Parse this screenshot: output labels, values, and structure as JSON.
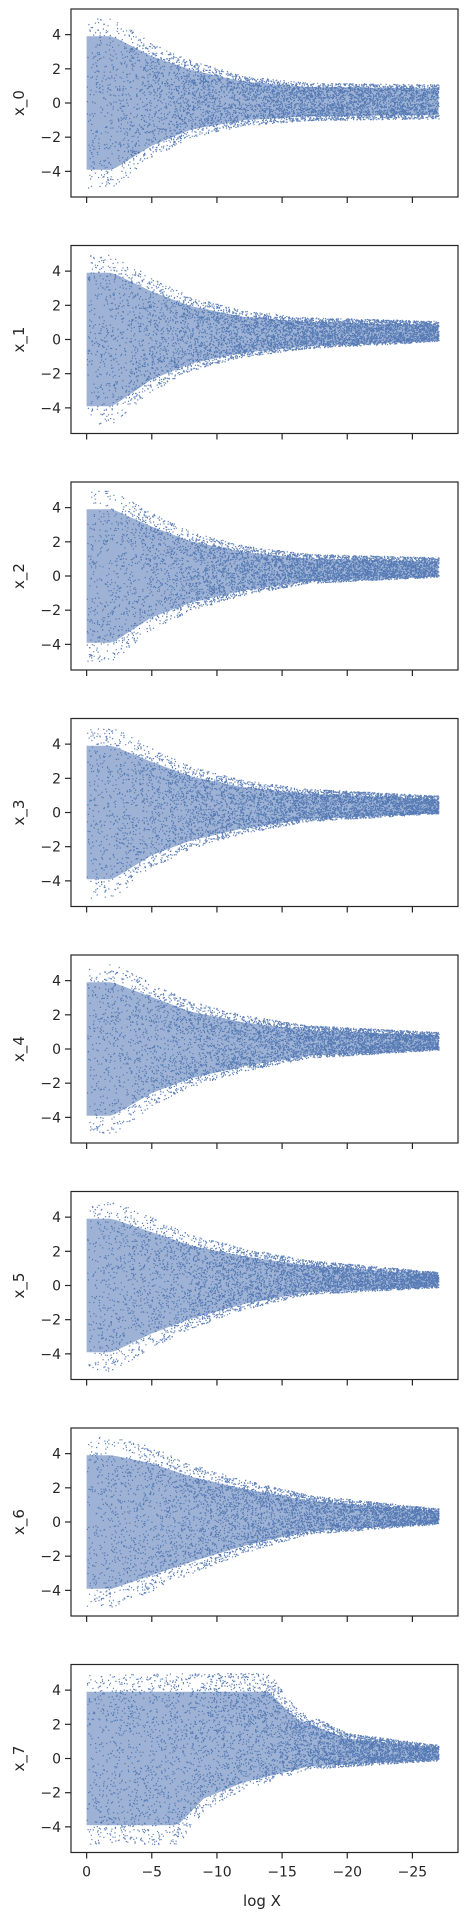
{
  "chart_data": {
    "type": "scatter",
    "layout": "vertical-stack",
    "xlabel": "log X",
    "xlim": [
      1.2,
      -28.5
    ],
    "x_ticks": [
      0,
      -5,
      -10,
      -15,
      -20,
      -25
    ],
    "x_tick_labels": [
      "0",
      "−5",
      "−10",
      "−15",
      "−20",
      "−25"
    ],
    "x_tick_labels_on_last_only": true,
    "x_data_range": [
      0,
      -27
    ],
    "ylim": [
      -5.5,
      5.5
    ],
    "y_ticks": [
      4,
      2,
      0,
      -2,
      -4
    ],
    "y_tick_labels": [
      "4",
      "2",
      "0",
      "−2",
      "−4"
    ],
    "grid": false,
    "legend": "none",
    "marker_color": "#4c72b0",
    "panels": [
      {
        "ylabel": "x_0",
        "upper_envelope": [
          [
            0,
            5
          ],
          [
            -2,
            5
          ],
          [
            -5,
            3.5
          ],
          [
            -8,
            2.5
          ],
          [
            -12,
            1.6
          ],
          [
            -17,
            1.2
          ],
          [
            -27,
            1.1
          ]
        ],
        "lower_envelope": [
          [
            0,
            -5
          ],
          [
            -2,
            -5
          ],
          [
            -5,
            -3.2
          ],
          [
            -8,
            -2
          ],
          [
            -12,
            -1.3
          ],
          [
            -17,
            -1.0
          ],
          [
            -27,
            -0.9
          ]
        ]
      },
      {
        "ylabel": "x_1",
        "upper_envelope": [
          [
            0,
            5
          ],
          [
            -2,
            5
          ],
          [
            -5,
            3.6
          ],
          [
            -8,
            2.5
          ],
          [
            -12,
            1.7
          ],
          [
            -17,
            1.3
          ],
          [
            -27,
            1.1
          ]
        ],
        "lower_envelope": [
          [
            0,
            -5
          ],
          [
            -2,
            -5
          ],
          [
            -5,
            -3.0
          ],
          [
            -8,
            -1.8
          ],
          [
            -12,
            -1.0
          ],
          [
            -17,
            -0.5
          ],
          [
            -27,
            -0.1
          ]
        ]
      },
      {
        "ylabel": "x_2",
        "upper_envelope": [
          [
            0,
            5
          ],
          [
            -2,
            5
          ],
          [
            -5,
            3.7
          ],
          [
            -8,
            2.6
          ],
          [
            -12,
            1.8
          ],
          [
            -17,
            1.3
          ],
          [
            -27,
            1.1
          ]
        ],
        "lower_envelope": [
          [
            0,
            -5
          ],
          [
            -2,
            -5
          ],
          [
            -5,
            -3.1
          ],
          [
            -8,
            -2.0
          ],
          [
            -12,
            -1.1
          ],
          [
            -17,
            -0.4
          ],
          [
            -27,
            -0.05
          ]
        ]
      },
      {
        "ylabel": "x_3",
        "upper_envelope": [
          [
            0,
            5
          ],
          [
            -2,
            5
          ],
          [
            -5,
            3.8
          ],
          [
            -8,
            2.7
          ],
          [
            -12,
            1.9
          ],
          [
            -17,
            1.4
          ],
          [
            -27,
            1.0
          ]
        ],
        "lower_envelope": [
          [
            0,
            -5
          ],
          [
            -2,
            -5
          ],
          [
            -5,
            -3.2
          ],
          [
            -8,
            -2.1
          ],
          [
            -12,
            -1.2
          ],
          [
            -17,
            -0.5
          ],
          [
            -27,
            -0.05
          ]
        ]
      },
      {
        "ylabel": "x_4",
        "upper_envelope": [
          [
            0,
            5
          ],
          [
            -2,
            5
          ],
          [
            -5,
            3.9
          ],
          [
            -8,
            2.8
          ],
          [
            -12,
            2.0
          ],
          [
            -17,
            1.4
          ],
          [
            -27,
            1.0
          ]
        ],
        "lower_envelope": [
          [
            0,
            -5
          ],
          [
            -2,
            -5
          ],
          [
            -5,
            -3.3
          ],
          [
            -8,
            -2.2
          ],
          [
            -12,
            -1.3
          ],
          [
            -17,
            -0.5
          ],
          [
            -27,
            -0.05
          ]
        ]
      },
      {
        "ylabel": "x_5",
        "upper_envelope": [
          [
            0,
            5
          ],
          [
            -2,
            5
          ],
          [
            -5,
            4.0
          ],
          [
            -8,
            3.0
          ],
          [
            -12,
            2.2
          ],
          [
            -17,
            1.5
          ],
          [
            -27,
            0.8
          ]
        ],
        "lower_envelope": [
          [
            0,
            -5
          ],
          [
            -2,
            -5
          ],
          [
            -5,
            -3.6
          ],
          [
            -8,
            -2.5
          ],
          [
            -12,
            -1.4
          ],
          [
            -17,
            -0.5
          ],
          [
            -27,
            -0.1
          ]
        ]
      },
      {
        "ylabel": "x_6",
        "upper_envelope": [
          [
            0,
            5
          ],
          [
            -2,
            5
          ],
          [
            -5,
            4.4
          ],
          [
            -8,
            3.4
          ],
          [
            -12,
            2.5
          ],
          [
            -17,
            1.6
          ],
          [
            -27,
            0.8
          ]
        ],
        "lower_envelope": [
          [
            0,
            -5
          ],
          [
            -2,
            -5
          ],
          [
            -5,
            -4.0
          ],
          [
            -8,
            -3.0
          ],
          [
            -12,
            -1.8
          ],
          [
            -17,
            -0.7
          ],
          [
            -27,
            -0.1
          ]
        ]
      },
      {
        "ylabel": "x_7",
        "upper_envelope": [
          [
            0,
            5
          ],
          [
            -8,
            5
          ],
          [
            -14,
            5
          ],
          [
            -16,
            3
          ],
          [
            -20,
            1.5
          ],
          [
            -27,
            0.8
          ]
        ],
        "lower_envelope": [
          [
            0,
            -5
          ],
          [
            -7,
            -5
          ],
          [
            -9,
            -3.0
          ],
          [
            -12,
            -1.8
          ],
          [
            -17,
            -0.6
          ],
          [
            -27,
            -0.1
          ]
        ]
      }
    ]
  }
}
